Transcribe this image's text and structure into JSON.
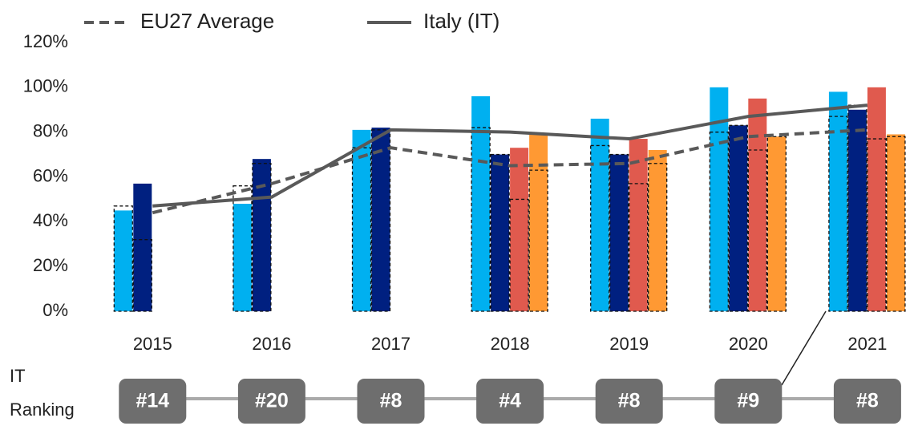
{
  "chart_data": {
    "type": "bar",
    "categories": [
      "2015",
      "2016",
      "2017",
      "2018",
      "2019",
      "2020",
      "2021"
    ],
    "series": [
      {
        "color": "#00b0f0",
        "values": [
          45,
          48,
          81,
          96,
          86,
          100,
          98
        ],
        "eu_values": [
          47,
          56,
          73,
          82,
          74,
          80,
          87
        ]
      },
      {
        "color": "#002080",
        "values": [
          57,
          68,
          82,
          70,
          70,
          83,
          90
        ],
        "eu_values": [
          32,
          66,
          81,
          70,
          70,
          83,
          92
        ]
      },
      {
        "color": "#e05a4e",
        "values": [
          null,
          null,
          null,
          73,
          77,
          95,
          100
        ],
        "eu_values": [
          null,
          null,
          null,
          50,
          57,
          72,
          77
        ]
      },
      {
        "color": "#ff9933",
        "values": [
          null,
          null,
          null,
          79,
          72,
          78,
          79
        ],
        "eu_values": [
          null,
          null,
          null,
          63,
          66,
          78,
          78
        ]
      }
    ],
    "lines": [
      {
        "name": "EU27 Average",
        "color": "#595959",
        "dashed": true,
        "values": [
          44,
          57,
          73,
          65,
          66,
          78,
          81
        ]
      },
      {
        "name": "Italy (IT)",
        "color": "#595959",
        "dashed": false,
        "values": [
          47,
          51,
          81,
          80,
          77,
          87,
          92
        ]
      }
    ],
    "ylim": [
      0,
      120
    ],
    "yticks": [
      {
        "value": 0,
        "label": "0%"
      },
      {
        "value": 20,
        "label": "20%"
      },
      {
        "value": 40,
        "label": "40%"
      },
      {
        "value": 60,
        "label": "60%"
      },
      {
        "value": 80,
        "label": "80%"
      },
      {
        "value": 100,
        "label": "100%"
      },
      {
        "value": 120,
        "label": "120%"
      }
    ],
    "ranking_label": "IT Ranking",
    "ranking_label_lines": [
      "IT",
      "Ranking"
    ],
    "rankings": [
      "#14",
      "#20",
      "#8",
      "#4",
      "#8",
      "#9",
      "#8"
    ]
  }
}
